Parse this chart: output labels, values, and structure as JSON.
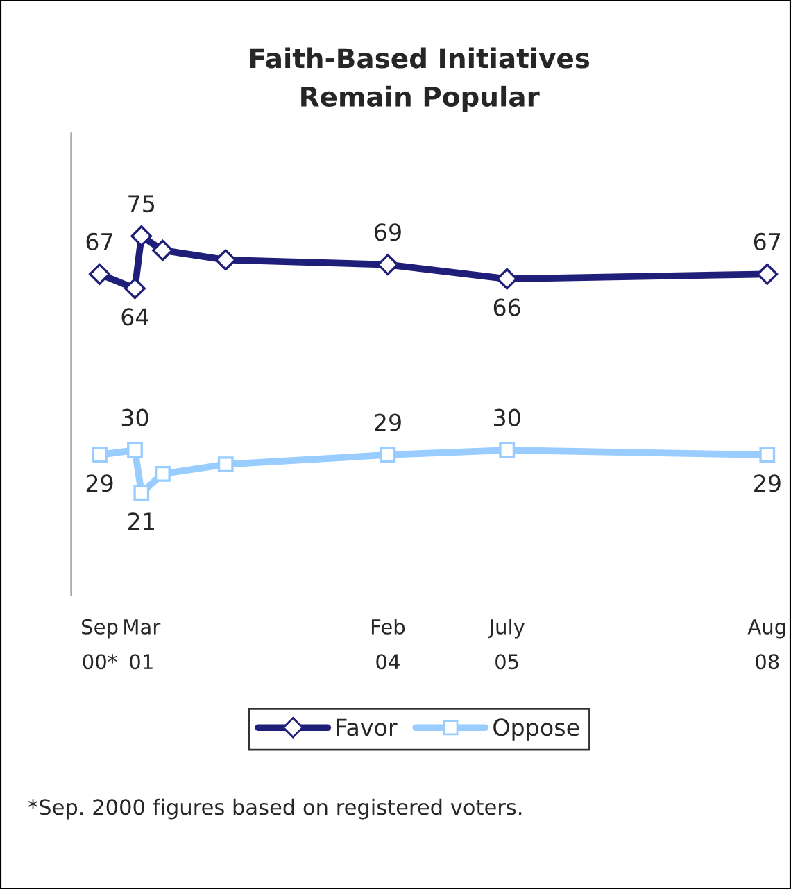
{
  "chart_data": {
    "type": "line",
    "title": "Faith-Based Initiatives\nRemain Popular",
    "x": [
      "2000-09",
      "2001-02",
      "2001-03",
      "2001-06",
      "2002-03",
      "2004-02",
      "2005-07",
      "2008-08"
    ],
    "xticks": [
      {
        "value": "2000-09",
        "label": "Sep\n00*"
      },
      {
        "value": "2001-03",
        "label": "Mar\n01"
      },
      {
        "value": "2004-02",
        "label": "Feb\n04"
      },
      {
        "value": "2005-07",
        "label": "July\n05"
      },
      {
        "value": "2008-08",
        "label": "Aug\n08"
      }
    ],
    "xlim": [
      "2000-05",
      "2008-08"
    ],
    "series": [
      {
        "name": "Favor",
        "color": "#1f1f7a",
        "marker": "diamond",
        "values": [
          67,
          64,
          75,
          72,
          70,
          69,
          66,
          67
        ],
        "value_labels": [
          "67",
          "64",
          "75",
          null,
          null,
          "69",
          "66",
          "67"
        ]
      },
      {
        "name": "Oppose",
        "color": "#99ccff",
        "marker": "square",
        "values": [
          29,
          30,
          21,
          25,
          27,
          29,
          30,
          29
        ],
        "value_labels": [
          "29",
          "30",
          "21",
          null,
          null,
          "29",
          "30",
          "29"
        ]
      }
    ],
    "legend": "bottom",
    "grid": false,
    "tick_labels": "x",
    "annotations": [
      "*Sep. 2000 figures based on registered voters."
    ]
  }
}
